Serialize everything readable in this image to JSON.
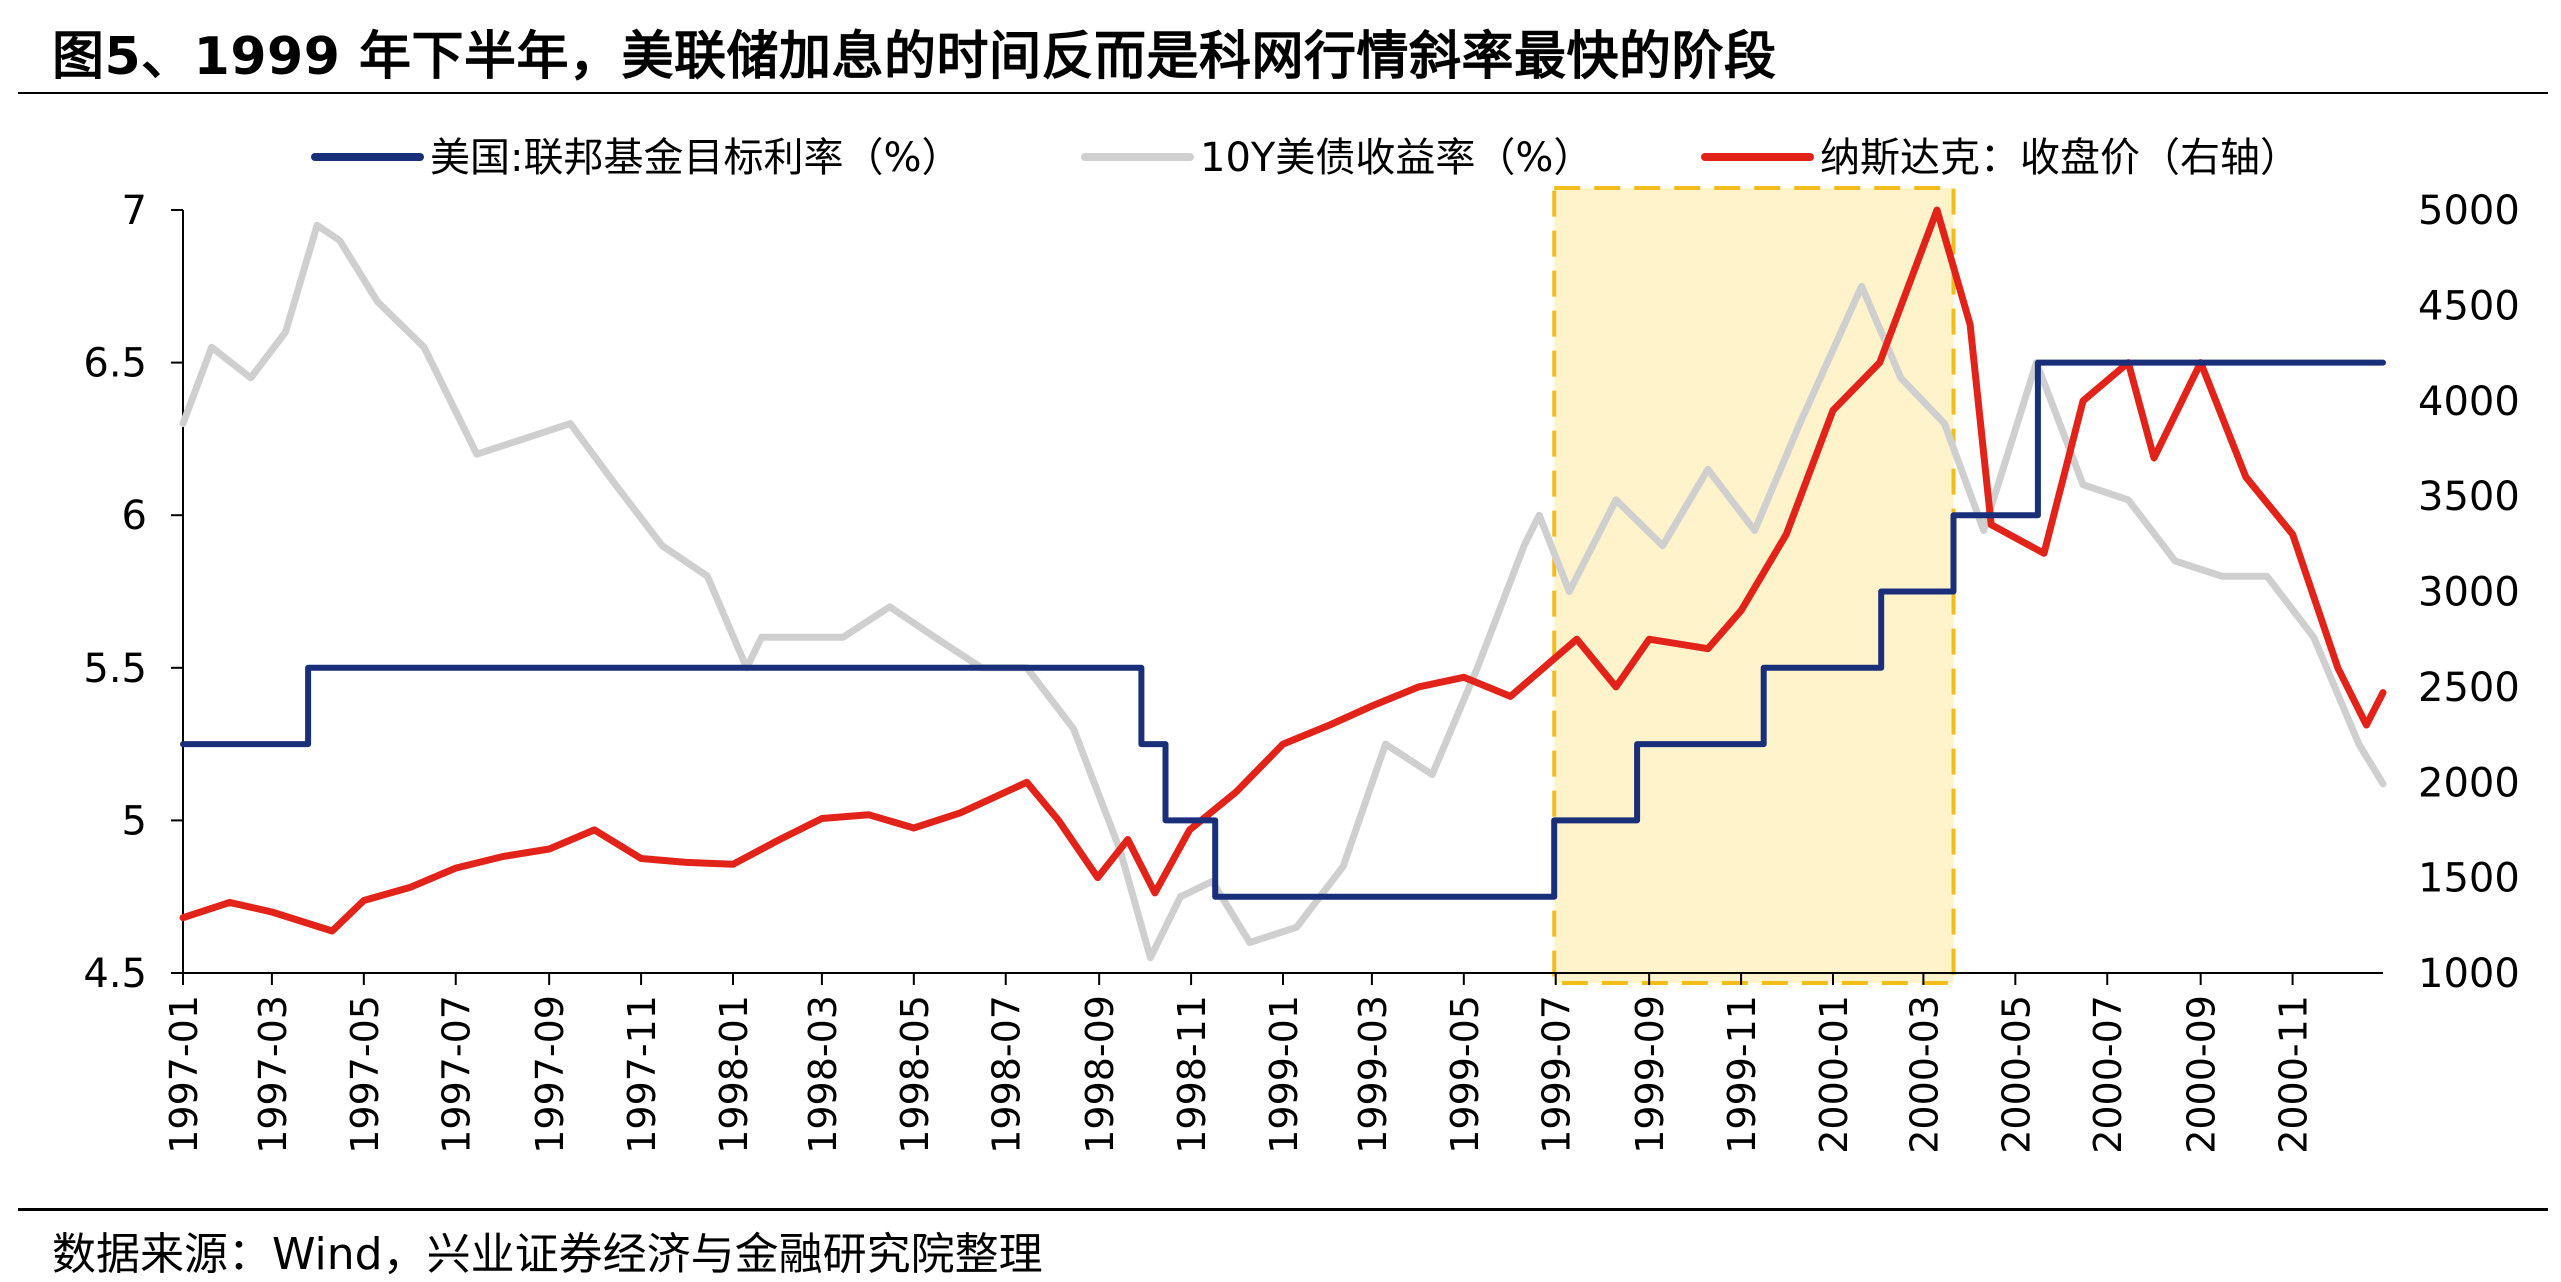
{
  "title": "图5、1999 年下半年，美联储加息的时间反而是科网行情斜率最快的阶段",
  "source": "数据来源：Wind，兴业证券经济与金融研究院整理",
  "chart_data": {
    "type": "line",
    "x_tick_labels": [
      "1997-01",
      "1997-03",
      "1997-05",
      "1997-07",
      "1997-09",
      "1997-11",
      "1998-01",
      "1998-03",
      "1998-05",
      "1998-07",
      "1998-09",
      "1998-11",
      "1999-01",
      "1999-03",
      "1999-05",
      "1999-07",
      "1999-09",
      "1999-11",
      "2000-01",
      "2000-03",
      "2000-05",
      "2000-07",
      "2000-09",
      "2000-11"
    ],
    "x_range": [
      "1997-01",
      "2000-12"
    ],
    "y_left": {
      "min": 4.5,
      "max": 7,
      "ticks": [
        "4.5",
        "5",
        "5.5",
        "6",
        "6.5",
        "7"
      ]
    },
    "y_right": {
      "min": 1000,
      "max": 5000,
      "ticks": [
        "1000",
        "1500",
        "2000",
        "2500",
        "3000",
        "3500",
        "4000",
        "4500",
        "5000"
      ]
    },
    "legend_position": "top",
    "highlight": {
      "from": "1999-06-30",
      "to": "2000-03-21",
      "fill": "#fff3cc",
      "border": "#f2bd1a"
    },
    "series": [
      {
        "name": "美国:联邦基金目标利率（%）",
        "axis": "left",
        "color": "#1a2f7a",
        "step": true,
        "points": [
          [
            "1997-01-01",
            5.25
          ],
          [
            "1997-03-25",
            5.5
          ],
          [
            "1998-09-29",
            5.25
          ],
          [
            "1998-10-15",
            5.0
          ],
          [
            "1998-11-17",
            4.75
          ],
          [
            "1999-06-30",
            5.0
          ],
          [
            "1999-08-24",
            5.25
          ],
          [
            "1999-11-16",
            5.5
          ],
          [
            "2000-02-02",
            5.75
          ],
          [
            "2000-03-21",
            6.0
          ],
          [
            "2000-05-16",
            6.5
          ],
          [
            "2000-12-31",
            6.5
          ]
        ]
      },
      {
        "name": "10Y美债收益率（%）",
        "axis": "left",
        "color": "#cfcfcf",
        "points": [
          [
            "1997-01-01",
            6.3
          ],
          [
            "1997-01-20",
            6.55
          ],
          [
            "1997-02-15",
            6.45
          ],
          [
            "1997-03-10",
            6.6
          ],
          [
            "1997-03-31",
            6.95
          ],
          [
            "1997-04-15",
            6.9
          ],
          [
            "1997-05-10",
            6.7
          ],
          [
            "1997-06-10",
            6.55
          ],
          [
            "1997-07-15",
            6.2
          ],
          [
            "1997-08-15",
            6.25
          ],
          [
            "1997-09-15",
            6.3
          ],
          [
            "1997-10-15",
            6.1
          ],
          [
            "1997-11-15",
            5.9
          ],
          [
            "1997-12-15",
            5.8
          ],
          [
            "1998-01-10",
            5.5
          ],
          [
            "1998-01-20",
            5.6
          ],
          [
            "1998-02-15",
            5.6
          ],
          [
            "1998-03-15",
            5.6
          ],
          [
            "1998-04-15",
            5.7
          ],
          [
            "1998-05-15",
            5.6
          ],
          [
            "1998-06-15",
            5.5
          ],
          [
            "1998-07-15",
            5.5
          ],
          [
            "1998-08-15",
            5.3
          ],
          [
            "1998-09-15",
            4.9
          ],
          [
            "1998-10-05",
            4.55
          ],
          [
            "1998-10-25",
            4.75
          ],
          [
            "1998-11-15",
            4.8
          ],
          [
            "1998-12-10",
            4.6
          ],
          [
            "1999-01-10",
            4.65
          ],
          [
            "1999-02-10",
            4.85
          ],
          [
            "1999-03-10",
            5.25
          ],
          [
            "1999-04-10",
            5.15
          ],
          [
            "1999-05-10",
            5.5
          ],
          [
            "1999-06-10",
            5.9
          ],
          [
            "1999-06-20",
            6.0
          ],
          [
            "1999-07-10",
            5.75
          ],
          [
            "1999-08-10",
            6.05
          ],
          [
            "1999-09-10",
            5.9
          ],
          [
            "1999-10-10",
            6.15
          ],
          [
            "1999-11-10",
            5.95
          ],
          [
            "1999-12-10",
            6.3
          ],
          [
            "2000-01-20",
            6.75
          ],
          [
            "2000-02-15",
            6.45
          ],
          [
            "2000-03-15",
            6.3
          ],
          [
            "2000-04-10",
            5.95
          ],
          [
            "2000-05-15",
            6.5
          ],
          [
            "2000-06-15",
            6.1
          ],
          [
            "2000-07-15",
            6.05
          ],
          [
            "2000-08-15",
            5.85
          ],
          [
            "2000-09-15",
            5.8
          ],
          [
            "2000-10-15",
            5.8
          ],
          [
            "2000-11-15",
            5.6
          ],
          [
            "2000-12-15",
            5.25
          ],
          [
            "2000-12-31",
            5.12
          ]
        ]
      },
      {
        "name": "纳斯达克：收盘价（右轴）",
        "axis": "right",
        "color": "#e2231a",
        "points": [
          [
            "1997-01-01",
            1290
          ],
          [
            "1997-02-01",
            1370
          ],
          [
            "1997-03-01",
            1320
          ],
          [
            "1997-04-10",
            1220
          ],
          [
            "1997-05-01",
            1380
          ],
          [
            "1997-06-01",
            1450
          ],
          [
            "1997-07-01",
            1550
          ],
          [
            "1997-08-01",
            1610
          ],
          [
            "1997-09-01",
            1650
          ],
          [
            "1997-10-01",
            1750
          ],
          [
            "1997-11-01",
            1600
          ],
          [
            "1997-12-01",
            1580
          ],
          [
            "1998-01-01",
            1570
          ],
          [
            "1998-02-01",
            1700
          ],
          [
            "1998-03-01",
            1810
          ],
          [
            "1998-04-01",
            1830
          ],
          [
            "1998-05-01",
            1760
          ],
          [
            "1998-06-01",
            1840
          ],
          [
            "1998-07-15",
            2000
          ],
          [
            "1998-08-05",
            1800
          ],
          [
            "1998-08-31",
            1500
          ],
          [
            "1998-09-20",
            1700
          ],
          [
            "1998-10-08",
            1420
          ],
          [
            "1998-10-31",
            1750
          ],
          [
            "1998-12-01",
            1950
          ],
          [
            "1999-01-01",
            2200
          ],
          [
            "1999-02-01",
            2300
          ],
          [
            "1999-03-01",
            2400
          ],
          [
            "1999-04-01",
            2500
          ],
          [
            "1999-05-01",
            2550
          ],
          [
            "1999-06-01",
            2450
          ],
          [
            "1999-07-15",
            2750
          ],
          [
            "1999-08-10",
            2500
          ],
          [
            "1999-09-01",
            2750
          ],
          [
            "1999-10-10",
            2700
          ],
          [
            "1999-11-01",
            2900
          ],
          [
            "1999-12-01",
            3300
          ],
          [
            "2000-01-01",
            3950
          ],
          [
            "2000-02-01",
            4200
          ],
          [
            "2000-03-10",
            5000
          ],
          [
            "2000-04-01",
            4400
          ],
          [
            "2000-04-15",
            3350
          ],
          [
            "2000-05-20",
            3200
          ],
          [
            "2000-06-15",
            4000
          ],
          [
            "2000-07-15",
            4200
          ],
          [
            "2000-08-01",
            3700
          ],
          [
            "2000-09-01",
            4200
          ],
          [
            "2000-10-01",
            3600
          ],
          [
            "2000-11-01",
            3300
          ],
          [
            "2000-12-01",
            2600
          ],
          [
            "2000-12-20",
            2300
          ],
          [
            "2000-12-31",
            2470
          ]
        ]
      }
    ]
  }
}
